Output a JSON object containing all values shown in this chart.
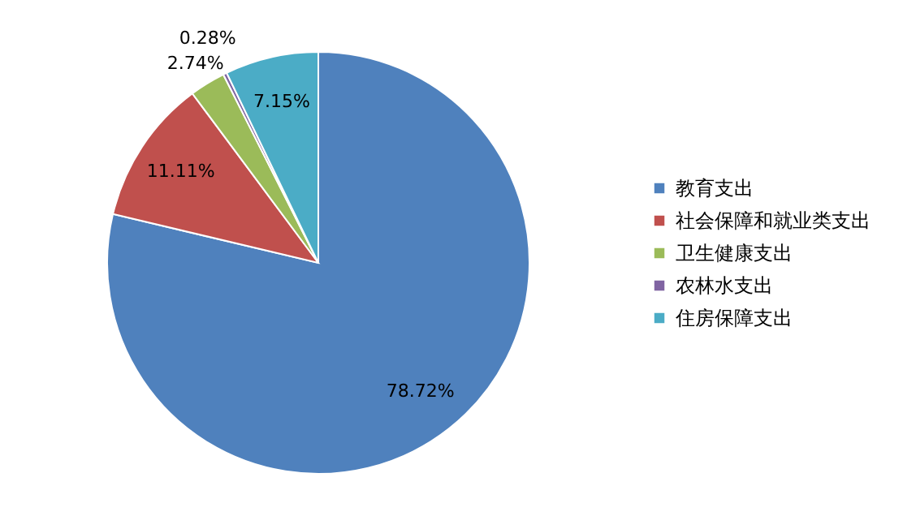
{
  "chart_data": {
    "type": "pie",
    "categories": [
      "教育支出",
      "社会保障和就业类支出",
      "卫生健康支出",
      "农林水支出",
      "住房保障支出"
    ],
    "values": [
      78.72,
      11.11,
      2.74,
      0.28,
      7.15
    ],
    "colors": [
      "#4f81bd",
      "#c0504d",
      "#9bbb59",
      "#8064a2",
      "#4bacc6"
    ],
    "value_labels": [
      "78.72%",
      "11.11%",
      "2.74%",
      "0.28%",
      "7.15%"
    ],
    "legend": "right"
  }
}
